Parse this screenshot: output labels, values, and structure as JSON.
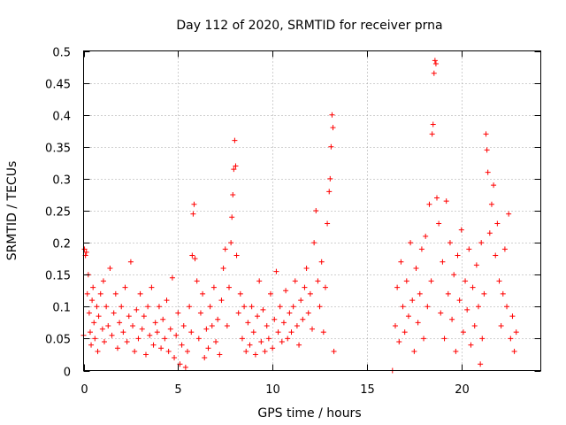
{
  "chart_data": {
    "type": "scatter",
    "title": "Day 112 of 2020, SRMTID for receiver prna",
    "xlabel": "GPS time / hours",
    "ylabel": "SRMTID / TECUs",
    "xlim": [
      0,
      24.2
    ],
    "ylim": [
      0,
      0.5
    ],
    "xticks": [
      0,
      5,
      10,
      15,
      20
    ],
    "xtick_labels": [
      "0",
      "5",
      "10",
      "15",
      "20"
    ],
    "yticks": [
      0,
      0.05,
      0.1,
      0.15,
      0.2,
      0.25,
      0.3,
      0.35,
      0.4,
      0.45,
      0.5
    ],
    "ytick_labels": [
      "0",
      "0.05",
      "0.1",
      "0.15",
      "0.2",
      "0.25",
      "0.3",
      "0.35",
      "0.4",
      "0.45",
      "0.5"
    ],
    "grid": true,
    "marker": "+",
    "color": "#ff0000",
    "series": [
      {
        "name": "SRMTID",
        "points": [
          [
            0.0,
            0.055
          ],
          [
            0.05,
            0.19
          ],
          [
            0.1,
            0.18
          ],
          [
            0.15,
            0.185
          ],
          [
            0.2,
            0.12
          ],
          [
            0.25,
            0.15
          ],
          [
            0.3,
            0.09
          ],
          [
            0.35,
            0.06
          ],
          [
            0.4,
            0.04
          ],
          [
            0.45,
            0.11
          ],
          [
            0.5,
            0.13
          ],
          [
            0.55,
            0.075
          ],
          [
            0.6,
            0.05
          ],
          [
            0.7,
            0.1
          ],
          [
            0.75,
            0.03
          ],
          [
            0.8,
            0.085
          ],
          [
            0.9,
            0.12
          ],
          [
            1.0,
            0.065
          ],
          [
            1.05,
            0.14
          ],
          [
            1.1,
            0.045
          ],
          [
            1.2,
            0.1
          ],
          [
            1.3,
            0.07
          ],
          [
            1.4,
            0.16
          ],
          [
            1.5,
            0.055
          ],
          [
            1.6,
            0.09
          ],
          [
            1.7,
            0.12
          ],
          [
            1.8,
            0.035
          ],
          [
            1.9,
            0.075
          ],
          [
            2.0,
            0.1
          ],
          [
            2.1,
            0.06
          ],
          [
            2.2,
            0.13
          ],
          [
            2.3,
            0.045
          ],
          [
            2.4,
            0.085
          ],
          [
            2.5,
            0.17
          ],
          [
            2.6,
            0.07
          ],
          [
            2.7,
            0.03
          ],
          [
            2.8,
            0.095
          ],
          [
            2.9,
            0.05
          ],
          [
            3.0,
            0.12
          ],
          [
            3.1,
            0.065
          ],
          [
            3.2,
            0.085
          ],
          [
            3.3,
            0.025
          ],
          [
            3.4,
            0.1
          ],
          [
            3.5,
            0.055
          ],
          [
            3.6,
            0.13
          ],
          [
            3.7,
            0.04
          ],
          [
            3.8,
            0.075
          ],
          [
            3.9,
            0.06
          ],
          [
            4.0,
            0.1
          ],
          [
            4.1,
            0.035
          ],
          [
            4.2,
            0.08
          ],
          [
            4.3,
            0.05
          ],
          [
            4.4,
            0.11
          ],
          [
            4.5,
            0.03
          ],
          [
            4.6,
            0.065
          ],
          [
            4.7,
            0.145
          ],
          [
            4.8,
            0.02
          ],
          [
            4.9,
            0.055
          ],
          [
            5.0,
            0.09
          ],
          [
            5.1,
            0.01
          ],
          [
            5.2,
            0.04
          ],
          [
            5.3,
            0.07
          ],
          [
            5.4,
            0.005
          ],
          [
            5.5,
            0.03
          ],
          [
            5.6,
            0.1
          ],
          [
            5.7,
            0.06
          ],
          [
            5.75,
            0.18
          ],
          [
            5.8,
            0.245
          ],
          [
            5.85,
            0.26
          ],
          [
            5.9,
            0.175
          ],
          [
            6.0,
            0.14
          ],
          [
            6.1,
            0.05
          ],
          [
            6.2,
            0.09
          ],
          [
            6.3,
            0.12
          ],
          [
            6.4,
            0.02
          ],
          [
            6.5,
            0.065
          ],
          [
            6.6,
            0.035
          ],
          [
            6.7,
            0.1
          ],
          [
            6.8,
            0.07
          ],
          [
            6.9,
            0.13
          ],
          [
            7.0,
            0.045
          ],
          [
            7.1,
            0.08
          ],
          [
            7.2,
            0.025
          ],
          [
            7.3,
            0.11
          ],
          [
            7.4,
            0.16
          ],
          [
            7.5,
            0.19
          ],
          [
            7.6,
            0.07
          ],
          [
            7.7,
            0.13
          ],
          [
            7.8,
            0.2
          ],
          [
            7.85,
            0.24
          ],
          [
            7.9,
            0.275
          ],
          [
            7.95,
            0.315
          ],
          [
            8.0,
            0.36
          ],
          [
            8.05,
            0.32
          ],
          [
            8.1,
            0.18
          ],
          [
            8.2,
            0.09
          ],
          [
            8.3,
            0.12
          ],
          [
            8.4,
            0.05
          ],
          [
            8.5,
            0.1
          ],
          [
            8.6,
            0.03
          ],
          [
            8.7,
            0.075
          ],
          [
            8.8,
            0.04
          ],
          [
            8.9,
            0.1
          ],
          [
            9.0,
            0.06
          ],
          [
            9.1,
            0.025
          ],
          [
            9.2,
            0.085
          ],
          [
            9.3,
            0.14
          ],
          [
            9.4,
            0.045
          ],
          [
            9.5,
            0.095
          ],
          [
            9.6,
            0.03
          ],
          [
            9.7,
            0.07
          ],
          [
            9.8,
            0.05
          ],
          [
            9.9,
            0.12
          ],
          [
            10.0,
            0.035
          ],
          [
            10.1,
            0.08
          ],
          [
            10.2,
            0.155
          ],
          [
            10.3,
            0.06
          ],
          [
            10.4,
            0.1
          ],
          [
            10.5,
            0.045
          ],
          [
            10.6,
            0.075
          ],
          [
            10.7,
            0.125
          ],
          [
            10.8,
            0.05
          ],
          [
            10.9,
            0.09
          ],
          [
            11.0,
            0.06
          ],
          [
            11.1,
            0.1
          ],
          [
            11.2,
            0.14
          ],
          [
            11.3,
            0.07
          ],
          [
            11.4,
            0.04
          ],
          [
            11.5,
            0.11
          ],
          [
            11.6,
            0.08
          ],
          [
            11.7,
            0.13
          ],
          [
            11.8,
            0.16
          ],
          [
            11.9,
            0.09
          ],
          [
            12.0,
            0.12
          ],
          [
            12.1,
            0.065
          ],
          [
            12.2,
            0.2
          ],
          [
            12.3,
            0.25
          ],
          [
            12.4,
            0.14
          ],
          [
            12.5,
            0.1
          ],
          [
            12.6,
            0.17
          ],
          [
            12.7,
            0.06
          ],
          [
            12.8,
            0.13
          ],
          [
            12.9,
            0.23
          ],
          [
            13.0,
            0.28
          ],
          [
            13.05,
            0.3
          ],
          [
            13.1,
            0.35
          ],
          [
            13.15,
            0.4
          ],
          [
            13.2,
            0.38
          ],
          [
            13.25,
            0.03
          ],
          [
            16.35,
            0.0
          ],
          [
            16.5,
            0.07
          ],
          [
            16.6,
            0.13
          ],
          [
            16.7,
            0.045
          ],
          [
            16.8,
            0.17
          ],
          [
            16.9,
            0.1
          ],
          [
            17.0,
            0.06
          ],
          [
            17.1,
            0.14
          ],
          [
            17.2,
            0.085
          ],
          [
            17.3,
            0.2
          ],
          [
            17.4,
            0.11
          ],
          [
            17.5,
            0.03
          ],
          [
            17.6,
            0.16
          ],
          [
            17.7,
            0.075
          ],
          [
            17.8,
            0.12
          ],
          [
            17.9,
            0.19
          ],
          [
            18.0,
            0.05
          ],
          [
            18.1,
            0.21
          ],
          [
            18.2,
            0.1
          ],
          [
            18.3,
            0.26
          ],
          [
            18.4,
            0.14
          ],
          [
            18.45,
            0.37
          ],
          [
            18.5,
            0.385
          ],
          [
            18.55,
            0.465
          ],
          [
            18.6,
            0.485
          ],
          [
            18.65,
            0.48
          ],
          [
            18.7,
            0.27
          ],
          [
            18.8,
            0.23
          ],
          [
            18.9,
            0.09
          ],
          [
            19.0,
            0.17
          ],
          [
            19.1,
            0.05
          ],
          [
            19.2,
            0.265
          ],
          [
            19.3,
            0.12
          ],
          [
            19.4,
            0.2
          ],
          [
            19.5,
            0.08
          ],
          [
            19.6,
            0.15
          ],
          [
            19.7,
            0.03
          ],
          [
            19.8,
            0.18
          ],
          [
            19.9,
            0.11
          ],
          [
            20.0,
            0.22
          ],
          [
            20.1,
            0.06
          ],
          [
            20.2,
            0.14
          ],
          [
            20.3,
            0.095
          ],
          [
            20.4,
            0.19
          ],
          [
            20.5,
            0.04
          ],
          [
            20.6,
            0.13
          ],
          [
            20.7,
            0.07
          ],
          [
            20.8,
            0.165
          ],
          [
            20.9,
            0.1
          ],
          [
            21.0,
            0.01
          ],
          [
            21.05,
            0.2
          ],
          [
            21.1,
            0.05
          ],
          [
            21.2,
            0.12
          ],
          [
            21.3,
            0.37
          ],
          [
            21.35,
            0.345
          ],
          [
            21.4,
            0.31
          ],
          [
            21.5,
            0.215
          ],
          [
            21.6,
            0.26
          ],
          [
            21.7,
            0.29
          ],
          [
            21.8,
            0.18
          ],
          [
            21.9,
            0.23
          ],
          [
            22.0,
            0.14
          ],
          [
            22.1,
            0.07
          ],
          [
            22.2,
            0.12
          ],
          [
            22.3,
            0.19
          ],
          [
            22.4,
            0.1
          ],
          [
            22.5,
            0.245
          ],
          [
            22.6,
            0.05
          ],
          [
            22.7,
            0.085
          ],
          [
            22.8,
            0.03
          ],
          [
            22.9,
            0.06
          ]
        ]
      }
    ]
  }
}
